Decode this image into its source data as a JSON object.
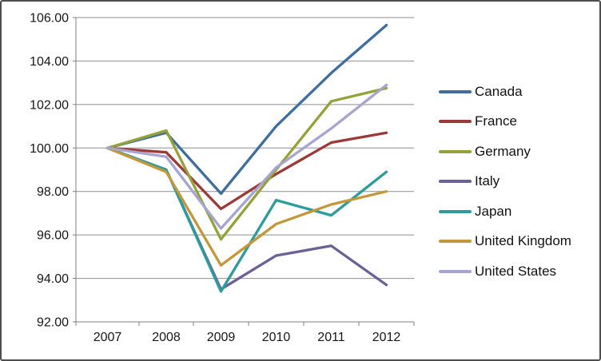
{
  "chart_data": {
    "type": "line",
    "title": "",
    "xlabel": "",
    "ylabel": "",
    "categories": [
      "2007",
      "2008",
      "2009",
      "2010",
      "2011",
      "2012"
    ],
    "series": [
      {
        "name": "Canada",
        "color": "#3e6e9f",
        "values": [
          100.0,
          100.7,
          97.9,
          101.0,
          103.45,
          105.65
        ]
      },
      {
        "name": "France",
        "color": "#9c3a38",
        "values": [
          100.0,
          99.8,
          97.2,
          98.8,
          100.25,
          100.7
        ]
      },
      {
        "name": "Germany",
        "color": "#95a139",
        "values": [
          100.0,
          100.8,
          95.8,
          99.0,
          102.15,
          102.75
        ]
      },
      {
        "name": "Italy",
        "color": "#6b6098",
        "values": [
          100.0,
          99.0,
          93.5,
          95.05,
          95.5,
          93.7
        ]
      },
      {
        "name": "Japan",
        "color": "#2e9b9c",
        "values": [
          100.0,
          99.0,
          93.4,
          97.6,
          96.9,
          98.9
        ]
      },
      {
        "name": "United Kingdom",
        "color": "#c2983b",
        "values": [
          100.0,
          98.9,
          94.6,
          96.5,
          97.4,
          98.0
        ]
      },
      {
        "name": "United States",
        "color": "#a5a5d0",
        "values": [
          100.0,
          99.6,
          96.3,
          99.1,
          100.9,
          102.9
        ]
      }
    ],
    "ylim": [
      92,
      106
    ],
    "y_tick_labels": [
      "106.00",
      "104.00",
      "102.00",
      "100.00",
      "98.00",
      "96.00",
      "94.00",
      "92.00"
    ],
    "x_tick_labels": [
      "2007",
      "2008",
      "2009",
      "2010",
      "2011",
      "2012"
    ],
    "grid": "horizontal",
    "legend_position": "right",
    "axis_color": "#808080",
    "gridline_color": "#8e8e8e"
  }
}
